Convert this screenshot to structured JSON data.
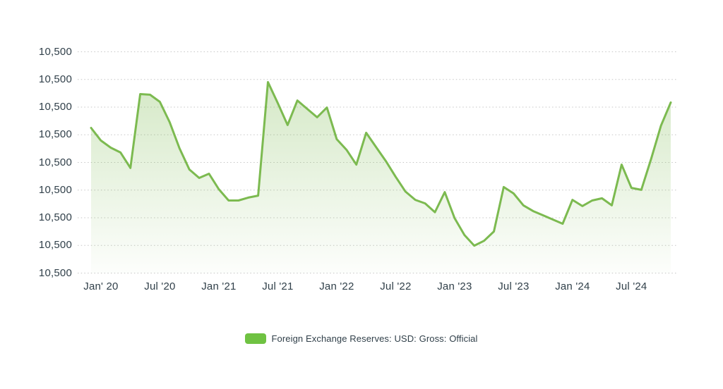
{
  "colors": {
    "background": "#ffffff",
    "text": "#31404a",
    "gridline": "#c6c6c6",
    "line": "#7cba50",
    "fill_top": "rgba(124,186,80,0.32)",
    "fill_bottom": "rgba(124,186,80,0.02)",
    "legend_swatch": "#6fc242"
  },
  "chart_data": {
    "type": "area",
    "title": "",
    "legend": "Foreign Exchange Reserves: USD: Gross: Official",
    "legend_position": "bottom-center",
    "grid": "horizontal dotted gridlines, no solid axis lines",
    "x_tick_labels": [
      "Jan' 20",
      "Jul '20",
      "Jan '21",
      "Jul '21",
      "Jan '22",
      "Jul '22",
      "Jan '23",
      "Jul '23",
      "Jan '24",
      "Jul '24"
    ],
    "x_tick_month_indices": [
      1,
      7,
      13,
      19,
      25,
      31,
      37,
      43,
      49,
      55
    ],
    "y_tick_labels": [
      "10,500",
      "10,500",
      "10,500",
      "10,500",
      "10,500",
      "10,500",
      "10,500",
      "10,500",
      "10,500"
    ],
    "y_axis_note": "all nine y-axis tick labels display the identical value 10,500",
    "value_scale": "percent of plot height: 0 = bottom gridline, 100 = top gridline (absolute units not readable from axis)",
    "ylim": [
      0,
      100
    ],
    "months": [
      "Dec '19",
      "Jan '20",
      "Feb '20",
      "Mar '20",
      "Apr '20",
      "May '20",
      "Jun '20",
      "Jul '20",
      "Aug '20",
      "Sep '20",
      "Oct '20",
      "Nov '20",
      "Dec '20",
      "Jan '21",
      "Feb '21",
      "Mar '21",
      "Apr '21",
      "May '21",
      "Jun '21",
      "Jul '21",
      "Aug '21",
      "Sep '21",
      "Oct '21",
      "Nov '21",
      "Dec '21",
      "Jan '22",
      "Feb '22",
      "Mar '22",
      "Apr '22",
      "May '22",
      "Jun '22",
      "Jul '22",
      "Aug '22",
      "Sep '22",
      "Oct '22",
      "Nov '22",
      "Dec '22",
      "Jan '23",
      "Feb '23",
      "Mar '23",
      "Apr '23",
      "May '23",
      "Jun '23",
      "Jul '23",
      "Aug '23",
      "Sep '23",
      "Oct '23",
      "Nov '23",
      "Dec '23",
      "Jan '24",
      "Feb '24",
      "Mar '24",
      "Apr '24",
      "May '24",
      "Jun '24",
      "Jul '24",
      "Aug '24",
      "Sep '24",
      "Oct '24",
      "Nov '24"
    ],
    "series": [
      {
        "name": "Foreign Exchange Reserves: USD: Gross: Official",
        "values": [
          65.6,
          59.9,
          56.7,
          54.5,
          47.5,
          80.9,
          80.6,
          77.4,
          68.2,
          56.4,
          46.8,
          43.0,
          44.9,
          37.9,
          32.8,
          32.8,
          34.1,
          35.0,
          86.3,
          76.8,
          66.9,
          78.0,
          74.2,
          70.4,
          74.8,
          60.5,
          55.7,
          49.0,
          63.4,
          57.0,
          50.6,
          43.5,
          36.8,
          33.1,
          31.5,
          27.5,
          36.6,
          24.8,
          17.2,
          12.4,
          14.6,
          18.8,
          38.9,
          36.0,
          30.6,
          28.0,
          26.1,
          24.2,
          22.3,
          33.1,
          30.3,
          32.8,
          33.8,
          30.6,
          49.0,
          38.5,
          37.6,
          51.6,
          66.6,
          77.1
        ]
      }
    ]
  }
}
